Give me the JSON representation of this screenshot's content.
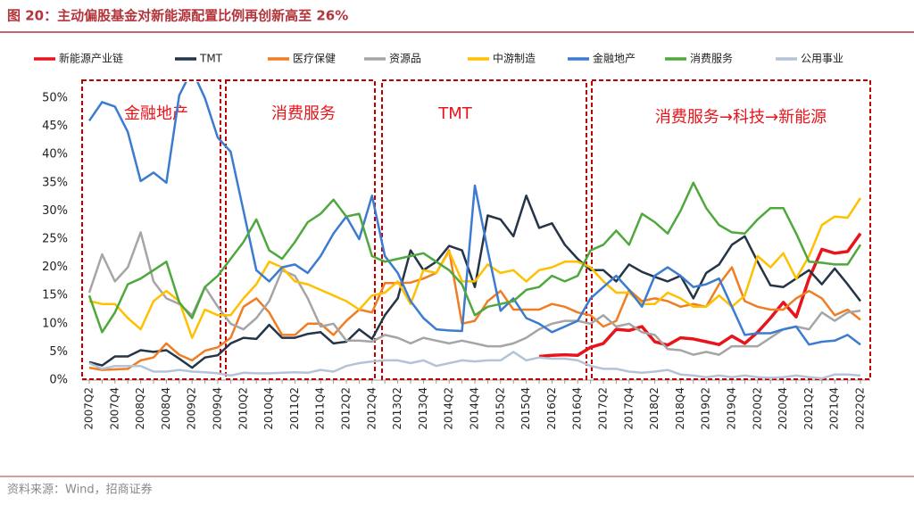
{
  "chart_data": {
    "type": "line",
    "title": "图 20：主动偏股基金对新能源配置比例再创新高至 26%",
    "source": "资料来源：Wind，招商证券",
    "annotations": [
      "金融地产",
      "消费服务",
      "TMT",
      "消费服务→科技→新能源"
    ],
    "categories": [
      "2007Q2",
      null,
      "2007Q4",
      null,
      "2008Q2",
      null,
      "2008Q4",
      null,
      "2009Q2",
      null,
      "2009Q4",
      null,
      "2010Q2",
      null,
      "2010Q4",
      null,
      "2011Q2",
      null,
      "2011Q4",
      null,
      "2012Q2",
      null,
      "2012Q4",
      null,
      "2013Q2",
      null,
      "2013Q4",
      null,
      "2014Q2",
      null,
      "2014Q4",
      null,
      "2015Q2",
      null,
      "2015Q4",
      null,
      "2016Q2",
      null,
      "2016Q4",
      null,
      "2017Q2",
      null,
      "2017Q4",
      null,
      "2018Q2",
      null,
      "2018Q4",
      null,
      "2019Q2",
      null,
      "2019Q4",
      null,
      "2020Q2",
      null,
      "2020Q4",
      null,
      "2021Q2",
      null,
      "2021Q4",
      null,
      "2022Q2"
    ],
    "ylim": [
      0,
      50
    ],
    "yticks": [
      {
        "value": 0,
        "label": "0%"
      },
      {
        "value": 5,
        "label": "5%"
      },
      {
        "value": 10,
        "label": "10%"
      },
      {
        "value": 15,
        "label": "15%"
      },
      {
        "value": 20,
        "label": "20%"
      },
      {
        "value": 25,
        "label": "25%"
      },
      {
        "value": 30,
        "label": "30%"
      },
      {
        "value": 35,
        "label": "35%"
      },
      {
        "value": 40,
        "label": "40%"
      },
      {
        "value": 45,
        "label": "45%"
      },
      {
        "value": 50,
        "label": "50%"
      }
    ],
    "legend": "top",
    "series": [
      {
        "name": "新能源产业链",
        "color": "#e8141b",
        "values": [
          null,
          null,
          null,
          null,
          null,
          null,
          null,
          null,
          null,
          null,
          null,
          null,
          null,
          null,
          null,
          null,
          null,
          null,
          null,
          null,
          null,
          null,
          null,
          null,
          null,
          null,
          null,
          null,
          null,
          null,
          null,
          null,
          null,
          null,
          null,
          4.2,
          4.4,
          4.5,
          4.4,
          5.8,
          6.5,
          9.0,
          8.8,
          9.5,
          6.8,
          6.2,
          7.5,
          7.3,
          6.8,
          6.3,
          7.8,
          6.5,
          8.5,
          11,
          13.8,
          11.2,
          18,
          23.2,
          22.5,
          22.8,
          26
        ]
      },
      {
        "name": "TMT",
        "color": "#253446",
        "values": [
          3.2,
          2.6,
          4.2,
          4.2,
          5.3,
          5.0,
          5.3,
          3.8,
          2.2,
          4.0,
          4.4,
          6.5,
          7.5,
          7.3,
          9.8,
          7.5,
          7.5,
          8.2,
          8.5,
          6.5,
          6.8,
          9.0,
          7.3,
          11.5,
          14.5,
          23,
          19.5,
          21,
          23.8,
          23,
          16.5,
          29.2,
          28.5,
          25.5,
          32.7,
          27,
          27.8,
          24,
          21.5,
          19.5,
          19.5,
          17.5,
          20.5,
          19.2,
          18.3,
          17.5,
          18.5,
          14.5,
          19,
          20.5,
          24,
          25.5,
          21,
          16.8,
          16.5,
          18,
          19.5,
          17,
          19.8,
          17,
          14
        ]
      },
      {
        "name": "医疗保健",
        "color": "#f07d23",
        "values": [
          2.2,
          1.8,
          1.9,
          2,
          3.5,
          4,
          6.5,
          4.5,
          3.5,
          5.2,
          5.8,
          7.5,
          13,
          14.5,
          12,
          8,
          8,
          10,
          10,
          8,
          10.5,
          12.5,
          12,
          17.2,
          17.2,
          17.3,
          18,
          19,
          23,
          10,
          10.5,
          14,
          15.8,
          12.5,
          12.5,
          12.5,
          13.5,
          13,
          12,
          11.5,
          9.5,
          10.5,
          16,
          14,
          14.5,
          14,
          13,
          13.5,
          13,
          17,
          20,
          14,
          13,
          12.5,
          12.5,
          14.5,
          15.8,
          14.5,
          11.5,
          12.5,
          10.7
        ]
      },
      {
        "name": "资源品",
        "color": "#a5a5a5",
        "values": [
          15.5,
          22.3,
          17.5,
          20,
          26.2,
          17.5,
          14.5,
          13.5,
          11.5,
          16.5,
          13,
          10,
          9,
          11,
          14,
          19.5,
          18.5,
          14.5,
          9.5,
          10,
          7,
          7,
          6.8,
          8,
          7.5,
          6.5,
          7.5,
          7,
          6.5,
          7,
          6.5,
          6,
          6,
          6.5,
          7.5,
          9,
          10,
          10.5,
          10.5,
          10,
          11.5,
          9.5,
          10,
          8.5,
          8,
          5.5,
          5.3,
          4.5,
          5,
          4.5,
          6,
          6,
          6,
          7.5,
          9,
          9.5,
          9,
          12,
          10.5,
          12,
          12.3
        ]
      },
      {
        "name": "中游制造",
        "color": "#ffc000",
        "values": [
          14,
          13.5,
          13.5,
          11,
          9,
          14,
          15.8,
          14,
          7.5,
          12.5,
          11.5,
          11.5,
          14.5,
          17,
          21,
          20,
          17.5,
          17,
          16,
          15,
          14,
          12.5,
          15,
          15.5,
          17.5,
          13.5,
          19.5,
          19,
          22.8,
          17.5,
          17.5,
          20.5,
          19,
          19.5,
          17.5,
          19.5,
          20,
          21,
          21,
          20,
          17.5,
          15.5,
          15.5,
          13.5,
          13.5,
          15.5,
          14.5,
          13,
          13,
          15,
          13,
          15,
          22,
          20,
          22.5,
          18,
          22,
          27.5,
          29,
          28.8,
          32.3
        ]
      },
      {
        "name": "金融地产",
        "color": "#3b7bd0",
        "values": [
          46,
          49.3,
          48.5,
          44,
          35.3,
          36.8,
          35,
          50.5,
          55,
          50,
          43,
          40.5,
          30,
          19.5,
          17.5,
          20,
          20.5,
          19,
          22,
          26,
          29,
          25,
          32.7,
          22,
          19,
          14,
          11,
          9,
          8.8,
          8.7,
          34.5,
          23,
          12.3,
          14.5,
          11,
          10,
          8.5,
          9.5,
          10.5,
          14.5,
          16.5,
          18.5,
          16,
          13,
          18.5,
          20,
          18.5,
          16.5,
          17,
          18,
          13,
          8,
          8.3,
          8.3,
          9,
          9.5,
          6.3,
          6.8,
          7,
          8,
          6.3
        ]
      },
      {
        "name": "消费服务",
        "color": "#4fa83d",
        "values": [
          15,
          8.5,
          12,
          17,
          18,
          19.5,
          21,
          13.8,
          11,
          16.5,
          18.5,
          21.5,
          24.5,
          28.5,
          23,
          21.5,
          24.5,
          28,
          29.5,
          32,
          29,
          29.5,
          22,
          21,
          21.5,
          22,
          22.5,
          21,
          19.5,
          17,
          11.5,
          13,
          13.5,
          14,
          16,
          16.5,
          18.5,
          17.5,
          18.5,
          23,
          24,
          26.5,
          24,
          29.5,
          28,
          26,
          30,
          35,
          30.5,
          27.5,
          26.2,
          26,
          28.5,
          30.5,
          30.5,
          26,
          21,
          20.8,
          20.5,
          20.5,
          24
        ]
      },
      {
        "name": "公用事业",
        "color": "#b4c3d6",
        "values": [
          3,
          2,
          2.5,
          2.5,
          2.5,
          1.5,
          1.5,
          1.8,
          1.5,
          1.4,
          1.2,
          0.8,
          1.3,
          1.2,
          1.2,
          1.3,
          1.4,
          1.3,
          1.8,
          1.5,
          2.5,
          3,
          3.3,
          3.5,
          3.5,
          3,
          3.5,
          2.5,
          3,
          3.5,
          3.3,
          3.5,
          3.5,
          5,
          3.5,
          4,
          3.8,
          3.8,
          3.5,
          2.5,
          2,
          2,
          1.5,
          1.3,
          1.5,
          1.8,
          1,
          0.8,
          0.5,
          0.8,
          0.5,
          0.8,
          0.5,
          0.4,
          0.5,
          0.8,
          0.5,
          0.3,
          1,
          1,
          0.8
        ]
      }
    ]
  }
}
